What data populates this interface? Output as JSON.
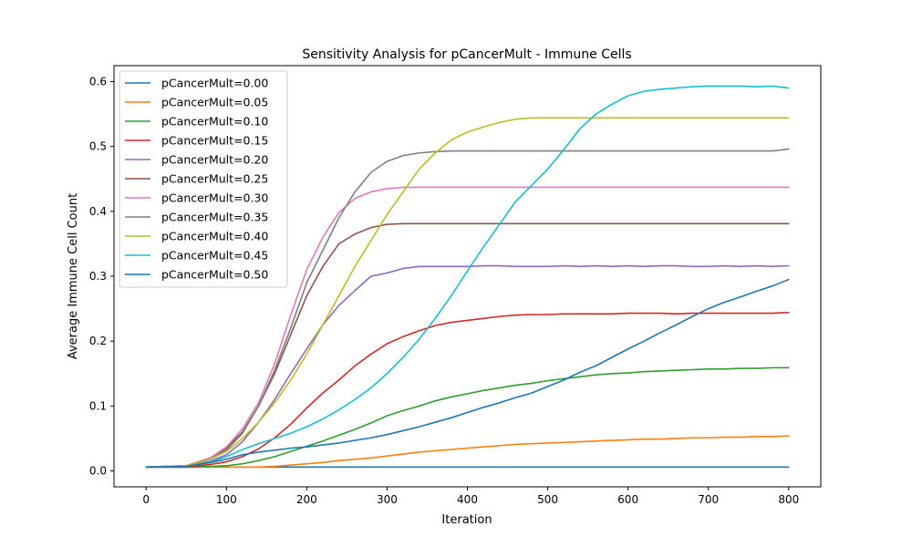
{
  "chart_data": {
    "type": "line",
    "title": "Sensitivity Analysis for pCancerMult - Immune Cells",
    "xlabel": "Iteration",
    "ylabel": "Average Immune Cell Count",
    "xlim": [
      -40,
      840
    ],
    "ylim": [
      -0.0245,
      0.6245
    ],
    "x_ticks": [
      0,
      100,
      200,
      300,
      400,
      500,
      600,
      700,
      800
    ],
    "y_ticks": [
      0.0,
      0.1,
      0.2,
      0.3,
      0.4,
      0.5,
      0.6
    ],
    "x_tick_labels": [
      "0",
      "100",
      "200",
      "300",
      "400",
      "500",
      "600",
      "700",
      "800"
    ],
    "y_tick_labels": [
      "0.0",
      "0.1",
      "0.2",
      "0.3",
      "0.4",
      "0.5",
      "0.6"
    ],
    "grid": false,
    "legend_position": "upper-left",
    "x": [
      0,
      50,
      80,
      100,
      120,
      140,
      160,
      180,
      200,
      220,
      240,
      260,
      280,
      300,
      320,
      340,
      360,
      380,
      400,
      420,
      440,
      460,
      480,
      500,
      520,
      540,
      560,
      580,
      600,
      620,
      640,
      660,
      680,
      700,
      720,
      740,
      760,
      780,
      800
    ],
    "series": [
      {
        "name": "pCancerMult=0.00",
        "color": "#1f77b4",
        "values": [
          0.006,
          0.006,
          0.006,
          0.006,
          0.006,
          0.006,
          0.006,
          0.006,
          0.006,
          0.006,
          0.006,
          0.006,
          0.006,
          0.006,
          0.006,
          0.006,
          0.006,
          0.006,
          0.006,
          0.006,
          0.006,
          0.006,
          0.006,
          0.006,
          0.006,
          0.006,
          0.006,
          0.006,
          0.006,
          0.006,
          0.006,
          0.006,
          0.006,
          0.006,
          0.006,
          0.006,
          0.006,
          0.006,
          0.006
        ]
      },
      {
        "name": "pCancerMult=0.05",
        "color": "#ff7f0e",
        "values": [
          0.006,
          0.006,
          0.006,
          0.006,
          0.006,
          0.006,
          0.007,
          0.009,
          0.011,
          0.013,
          0.016,
          0.018,
          0.02,
          0.023,
          0.026,
          0.029,
          0.031,
          0.033,
          0.035,
          0.037,
          0.039,
          0.041,
          0.042,
          0.043,
          0.044,
          0.045,
          0.046,
          0.047,
          0.048,
          0.049,
          0.049,
          0.05,
          0.051,
          0.051,
          0.052,
          0.052,
          0.053,
          0.053,
          0.054
        ]
      },
      {
        "name": "pCancerMult=0.10",
        "color": "#2ca02c",
        "values": [
          0.006,
          0.006,
          0.007,
          0.008,
          0.011,
          0.016,
          0.022,
          0.03,
          0.038,
          0.046,
          0.055,
          0.064,
          0.074,
          0.085,
          0.093,
          0.1,
          0.108,
          0.114,
          0.119,
          0.124,
          0.128,
          0.132,
          0.135,
          0.139,
          0.142,
          0.145,
          0.148,
          0.15,
          0.151,
          0.153,
          0.154,
          0.155,
          0.156,
          0.157,
          0.157,
          0.158,
          0.158,
          0.159,
          0.159
        ]
      },
      {
        "name": "pCancerMult=0.15",
        "color": "#d62728",
        "values": [
          0.006,
          0.006,
          0.01,
          0.014,
          0.022,
          0.034,
          0.051,
          0.072,
          0.097,
          0.12,
          0.14,
          0.162,
          0.18,
          0.196,
          0.207,
          0.216,
          0.224,
          0.229,
          0.232,
          0.235,
          0.238,
          0.24,
          0.241,
          0.241,
          0.242,
          0.242,
          0.242,
          0.242,
          0.243,
          0.243,
          0.243,
          0.242,
          0.243,
          0.243,
          0.243,
          0.243,
          0.243,
          0.243,
          0.244
        ]
      },
      {
        "name": "pCancerMult=0.20",
        "color": "#9467bd",
        "values": [
          0.006,
          0.007,
          0.015,
          0.025,
          0.045,
          0.075,
          0.11,
          0.15,
          0.188,
          0.225,
          0.255,
          0.278,
          0.3,
          0.305,
          0.312,
          0.315,
          0.315,
          0.315,
          0.315,
          0.316,
          0.316,
          0.315,
          0.315,
          0.315,
          0.316,
          0.315,
          0.316,
          0.315,
          0.316,
          0.315,
          0.316,
          0.316,
          0.315,
          0.315,
          0.316,
          0.315,
          0.316,
          0.315,
          0.316
        ]
      },
      {
        "name": "pCancerMult=0.25",
        "color": "#8c564b",
        "values": [
          0.006,
          0.008,
          0.02,
          0.035,
          0.06,
          0.1,
          0.15,
          0.21,
          0.27,
          0.315,
          0.35,
          0.365,
          0.375,
          0.38,
          0.381,
          0.381,
          0.381,
          0.381,
          0.381,
          0.381,
          0.381,
          0.381,
          0.381,
          0.381,
          0.381,
          0.381,
          0.381,
          0.381,
          0.381,
          0.381,
          0.381,
          0.381,
          0.381,
          0.381,
          0.381,
          0.381,
          0.381,
          0.381,
          0.381
        ]
      },
      {
        "name": "pCancerMult=0.30",
        "color": "#e377c2",
        "values": [
          0.006,
          0.008,
          0.02,
          0.037,
          0.065,
          0.105,
          0.165,
          0.24,
          0.31,
          0.36,
          0.398,
          0.42,
          0.43,
          0.435,
          0.437,
          0.437,
          0.437,
          0.437,
          0.437,
          0.437,
          0.437,
          0.437,
          0.437,
          0.437,
          0.437,
          0.437,
          0.437,
          0.437,
          0.437,
          0.437,
          0.437,
          0.437,
          0.437,
          0.437,
          0.437,
          0.437,
          0.437,
          0.437,
          0.437
        ]
      },
      {
        "name": "pCancerMult=0.35",
        "color": "#7f7f7f",
        "values": [
          0.006,
          0.008,
          0.018,
          0.032,
          0.058,
          0.1,
          0.155,
          0.22,
          0.29,
          0.34,
          0.39,
          0.43,
          0.46,
          0.477,
          0.486,
          0.49,
          0.492,
          0.493,
          0.493,
          0.493,
          0.493,
          0.493,
          0.493,
          0.493,
          0.493,
          0.493,
          0.493,
          0.493,
          0.493,
          0.493,
          0.493,
          0.493,
          0.493,
          0.493,
          0.493,
          0.493,
          0.493,
          0.493,
          0.496
        ]
      },
      {
        "name": "pCancerMult=0.40",
        "color": "#bcbd22",
        "values": [
          0.006,
          0.008,
          0.018,
          0.03,
          0.05,
          0.075,
          0.105,
          0.14,
          0.18,
          0.225,
          0.27,
          0.315,
          0.355,
          0.395,
          0.43,
          0.465,
          0.49,
          0.51,
          0.522,
          0.53,
          0.537,
          0.542,
          0.544,
          0.544,
          0.544,
          0.544,
          0.544,
          0.544,
          0.544,
          0.544,
          0.544,
          0.544,
          0.544,
          0.544,
          0.544,
          0.544,
          0.544,
          0.544,
          0.544
        ]
      },
      {
        "name": "pCancerMult=0.45",
        "color": "#17becf",
        "values": [
          0.006,
          0.007,
          0.014,
          0.022,
          0.033,
          0.042,
          0.05,
          0.058,
          0.068,
          0.08,
          0.094,
          0.11,
          0.128,
          0.15,
          0.175,
          0.203,
          0.235,
          0.27,
          0.308,
          0.345,
          0.38,
          0.415,
          0.44,
          0.465,
          0.495,
          0.527,
          0.55,
          0.565,
          0.578,
          0.585,
          0.588,
          0.59,
          0.592,
          0.593,
          0.593,
          0.593,
          0.592,
          0.593,
          0.59
        ]
      },
      {
        "name": "pCancerMult=0.50",
        "color": "#1f77b4",
        "values": [
          0.006,
          0.007,
          0.013,
          0.018,
          0.025,
          0.029,
          0.032,
          0.035,
          0.037,
          0.04,
          0.043,
          0.047,
          0.051,
          0.056,
          0.062,
          0.068,
          0.075,
          0.082,
          0.09,
          0.098,
          0.105,
          0.113,
          0.12,
          0.13,
          0.14,
          0.152,
          0.162,
          0.175,
          0.188,
          0.2,
          0.213,
          0.225,
          0.238,
          0.25,
          0.26,
          0.268,
          0.277,
          0.285,
          0.295
        ]
      }
    ]
  }
}
